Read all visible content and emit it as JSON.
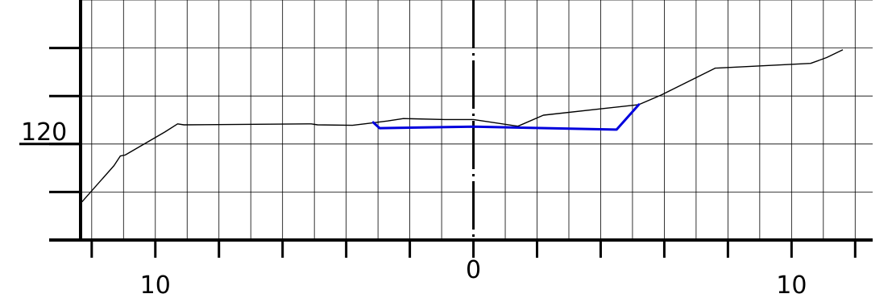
{
  "chart_data": {
    "type": "line",
    "title": "",
    "xlabel": "",
    "ylabel": "",
    "x_tick_labels": [
      {
        "x": -10,
        "label": "10"
      },
      {
        "x": 0,
        "label": "0"
      },
      {
        "x": 10,
        "label": "10"
      }
    ],
    "y_tick_labels": [
      {
        "y": 120,
        "label": "120"
      }
    ],
    "xlim": [
      -12.35,
      12.55
    ],
    "ylim": [
      118,
      123
    ],
    "x_grid_step": 1,
    "y_grid_step": 1,
    "grid": true,
    "centerline_x": 0,
    "series": [
      {
        "name": "",
        "color": "#000000",
        "points": [
          [
            -12.3,
            118.8
          ],
          [
            -11.3,
            119.55
          ],
          [
            -11.1,
            119.75
          ],
          [
            -10.95,
            119.77
          ],
          [
            -9.7,
            120.25
          ],
          [
            -9.3,
            120.42
          ],
          [
            -9.1,
            120.4
          ],
          [
            -5.1,
            120.42
          ],
          [
            -4.9,
            120.4
          ],
          [
            -3.8,
            120.39
          ],
          [
            -3.3,
            120.43
          ],
          [
            -2.7,
            120.48
          ],
          [
            -2.2,
            120.53
          ],
          [
            -0.9,
            120.51
          ],
          [
            0,
            120.51
          ],
          [
            1.4,
            120.37
          ],
          [
            2.2,
            120.6
          ],
          [
            5.2,
            120.82
          ],
          [
            5.9,
            121.02
          ],
          [
            7.6,
            121.58
          ],
          [
            10.6,
            121.68
          ],
          [
            11.1,
            121.8
          ],
          [
            11.6,
            121.96
          ]
        ]
      },
      {
        "name": "",
        "color": "#0000dd",
        "points": [
          [
            -3.15,
            120.45
          ],
          [
            -2.95,
            120.33
          ],
          [
            0,
            120.36
          ],
          [
            4.5,
            120.3
          ],
          [
            5.2,
            120.82
          ]
        ]
      }
    ]
  }
}
